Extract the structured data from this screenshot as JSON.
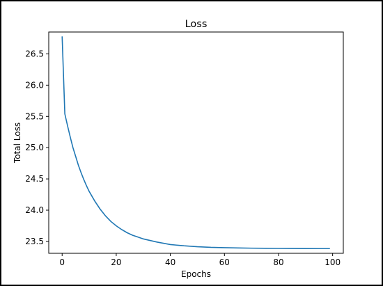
{
  "chart_data": {
    "type": "line",
    "title": "Loss",
    "xlabel": "Epochs",
    "ylabel": "Total Loss",
    "xlim": [
      -4.95,
      103.95
    ],
    "ylim": [
      23.31,
      26.85
    ],
    "xticks": [
      0,
      20,
      40,
      60,
      80,
      100
    ],
    "xtick_labels": [
      "0",
      "20",
      "40",
      "60",
      "80",
      "100"
    ],
    "yticks": [
      23.5,
      24.0,
      24.5,
      25.0,
      25.5,
      26.0,
      26.5
    ],
    "ytick_labels": [
      "23.5",
      "24.0",
      "24.5",
      "25.0",
      "25.5",
      "26.0",
      "26.5"
    ],
    "grid": false,
    "line_color": "#1f77b4",
    "series": [
      {
        "x": [
          0,
          1,
          2,
          3,
          4,
          5,
          6,
          7,
          8,
          9,
          10,
          12,
          14,
          16,
          18,
          20,
          22,
          24,
          26,
          28,
          30,
          35,
          40,
          45,
          50,
          55,
          60,
          65,
          70,
          75,
          80,
          85,
          90,
          95,
          99
        ],
        "values": [
          26.78,
          25.54,
          25.35,
          25.17,
          25.0,
          24.86,
          24.72,
          24.6,
          24.49,
          24.39,
          24.3,
          24.15,
          24.02,
          23.91,
          23.82,
          23.75,
          23.69,
          23.64,
          23.6,
          23.57,
          23.54,
          23.49,
          23.45,
          23.43,
          23.415,
          23.405,
          23.4,
          23.395,
          23.392,
          23.39,
          23.388,
          23.387,
          23.386,
          23.385,
          23.385
        ]
      }
    ]
  }
}
